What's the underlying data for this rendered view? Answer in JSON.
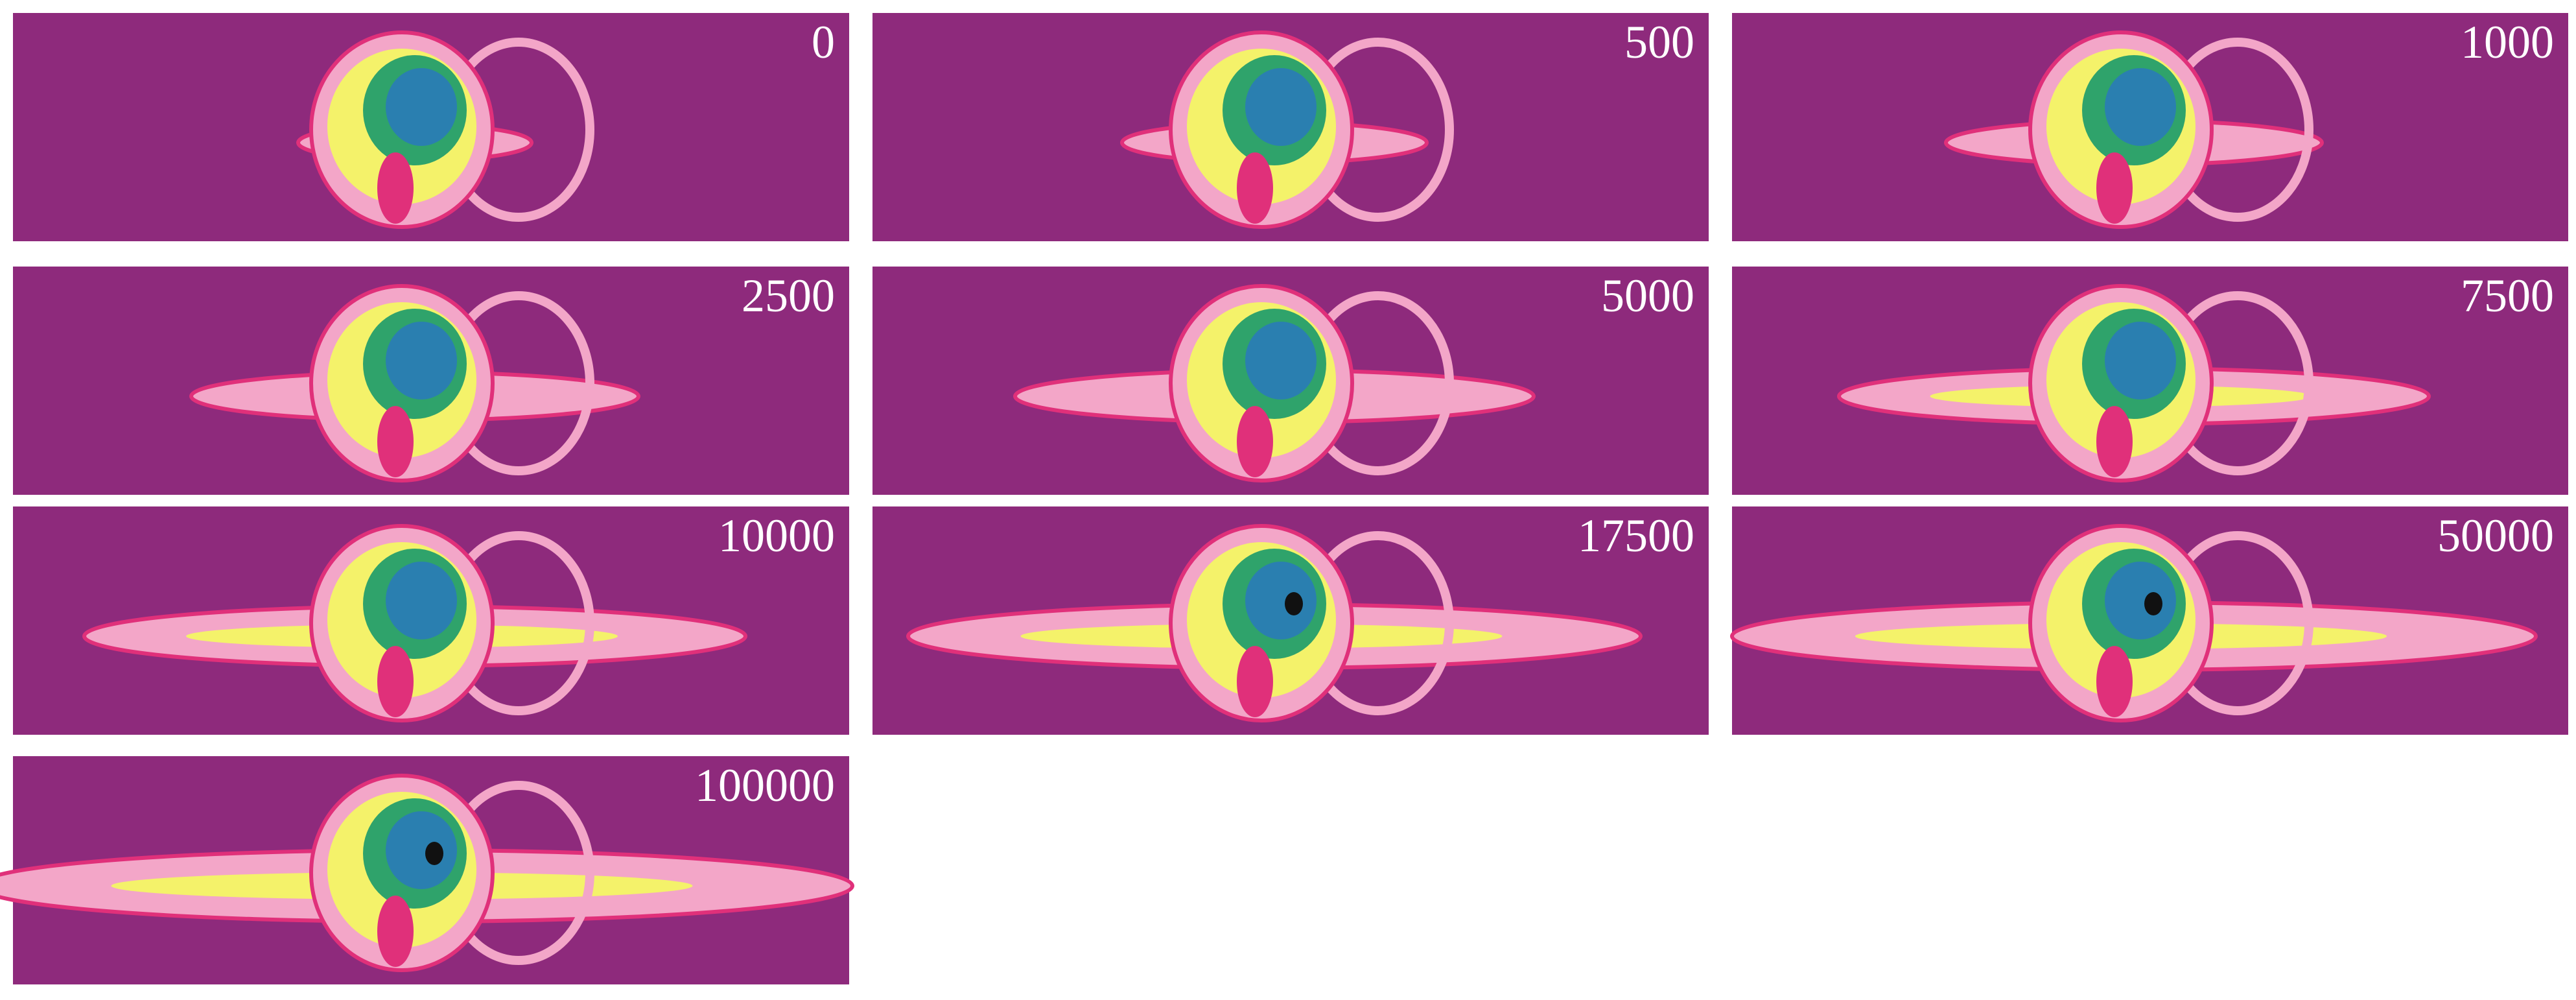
{
  "panels": [
    {
      "label": "0"
    },
    {
      "label": "500"
    },
    {
      "label": "1000"
    },
    {
      "label": "2500"
    },
    {
      "label": "5000"
    },
    {
      "label": "7500"
    },
    {
      "label": "10000"
    },
    {
      "label": "17500"
    },
    {
      "label": "50000"
    },
    {
      "label": "100000"
    }
  ]
}
